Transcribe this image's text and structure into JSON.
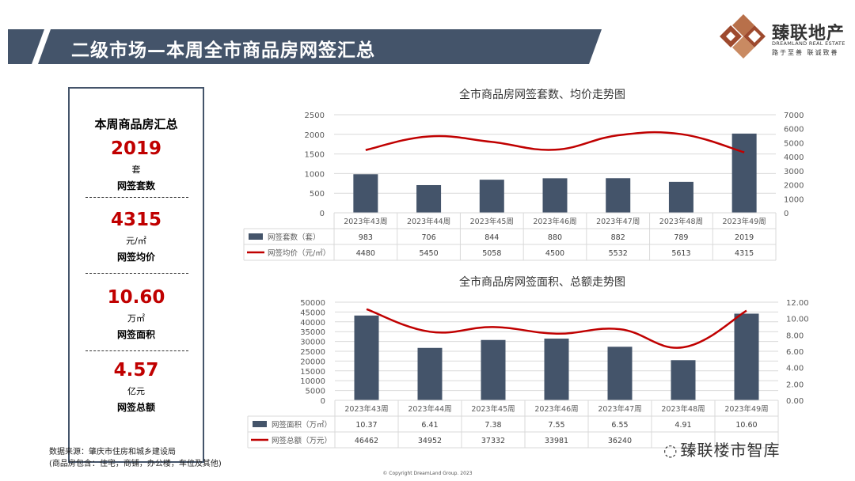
{
  "header": {
    "title": "二级市场—本周全市商品房网签汇总",
    "accent_color": "#44546a"
  },
  "brand": {
    "name": "臻联地产",
    "en": "DREAMLAND REAL ESTATE",
    "slogan": "路于至善 联诚致善"
  },
  "summary": {
    "title": "本周商品房汇总",
    "metrics": [
      {
        "value": "2019",
        "unit": "套",
        "label": "网签套数"
      },
      {
        "value": "4315",
        "unit": "元/㎡",
        "label": "网签均价"
      },
      {
        "value": "10.60",
        "unit": "万㎡",
        "label": "网签面积"
      },
      {
        "value": "4.57",
        "unit": "亿元",
        "label": "网签总额"
      }
    ],
    "value_color": "#c00000"
  },
  "source": {
    "line1": "数据来源：肇庆市住房和城乡建设局",
    "line2": "(商品房包含：住宅，商铺，办公楼，车位及其他)"
  },
  "copyright": "© Copyright  DreamLand Group. 2023",
  "wechat_mark": "臻联楼市智库",
  "chart_data": [
    {
      "type": "bar",
      "title": "全市商品房网签套数、均价走势图",
      "categories": [
        "2023年43周",
        "2023年44周",
        "2023年45周",
        "2023年46周",
        "2023年47周",
        "2023年48周",
        "2023年49周"
      ],
      "series": [
        {
          "name": "网签套数（套）",
          "kind": "bar",
          "axis": "left",
          "color": "#44546a",
          "values": [
            983,
            706,
            844,
            880,
            882,
            789,
            2019
          ]
        },
        {
          "name": "网签均价（元/㎡）",
          "kind": "line",
          "axis": "right",
          "color": "#c00000",
          "values": [
            4480,
            5450,
            5058,
            4500,
            5532,
            5613,
            4315
          ]
        }
      ],
      "ylim_left": [
        0,
        2500
      ],
      "yticks_left": [
        "2500",
        "2000",
        "1500",
        "1000",
        "500",
        "0"
      ],
      "ylim_right": [
        0,
        7000
      ],
      "yticks_right": [
        "7000",
        "6000",
        "5000",
        "4000",
        "3000",
        "2000",
        "1000",
        "0"
      ],
      "data_table": true,
      "grid": true
    },
    {
      "type": "bar",
      "title": "全市商品房网签面积、总额走势图",
      "categories": [
        "2023年43周",
        "2023年44周",
        "2023年45周",
        "2023年46周",
        "2023年47周",
        "2023年48周",
        "2023年49周"
      ],
      "series": [
        {
          "name": "网签面积（万㎡）",
          "kind": "bar",
          "axis": "right",
          "color": "#44546a",
          "values": [
            10.37,
            6.41,
            7.38,
            7.55,
            6.55,
            4.91,
            10.6
          ],
          "labels": [
            "10.37",
            "6.41",
            "7.38",
            "7.55",
            "6.55",
            "4.91",
            "10.60"
          ]
        },
        {
          "name": "网签总额（万元）",
          "kind": "line",
          "axis": "left",
          "color": "#c00000",
          "values": [
            46462,
            34952,
            37332,
            33981,
            36240,
            27000,
            45700
          ],
          "labels": [
            "46462",
            "34952",
            "37332",
            "33981",
            "36240",
            "",
            ""
          ]
        }
      ],
      "ylim_left": [
        0,
        50000
      ],
      "yticks_left": [
        "50000",
        "45000",
        "40000",
        "35000",
        "30000",
        "25000",
        "20000",
        "15000",
        "10000",
        "5000",
        "0"
      ],
      "ylim_right": [
        0,
        12
      ],
      "yticks_right": [
        "12.00",
        "10.00",
        "8.00",
        "6.00",
        "4.00",
        "2.00",
        "0.00"
      ],
      "data_table": true,
      "grid": true
    }
  ]
}
